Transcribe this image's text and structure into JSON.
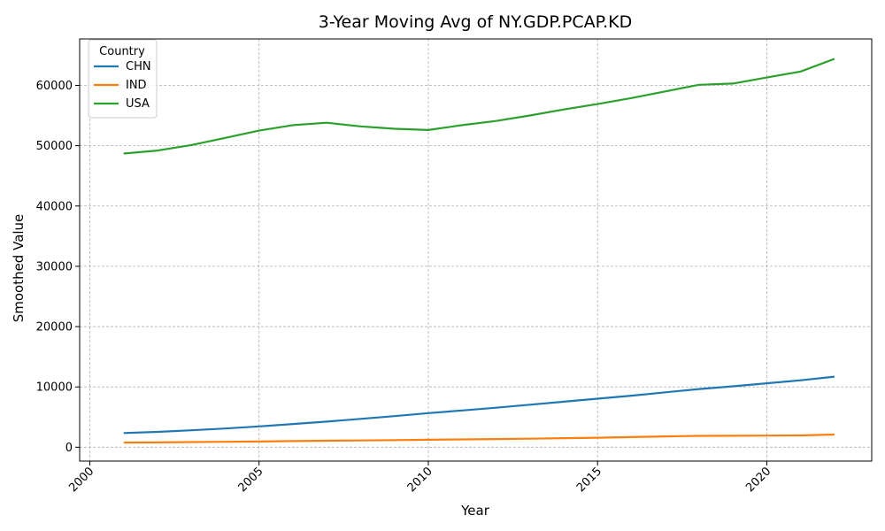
{
  "chart_data": {
    "type": "line",
    "title": "3-Year Moving Avg of NY.GDP.PCAP.KD",
    "xlabel": "Year",
    "ylabel": "Smoothed Value",
    "xlim": [
      1999.7,
      2023.1
    ],
    "ylim": [
      -2300,
      67700
    ],
    "xticks": [
      2000,
      2005,
      2010,
      2015,
      2020
    ],
    "yticks": [
      0,
      10000,
      20000,
      30000,
      40000,
      50000,
      60000
    ],
    "grid": true,
    "legend": {
      "title": "Country",
      "position": "top-left"
    },
    "x": [
      2001,
      2002,
      2003,
      2004,
      2005,
      2006,
      2007,
      2008,
      2009,
      2010,
      2011,
      2012,
      2013,
      2014,
      2015,
      2016,
      2017,
      2018,
      2019,
      2020,
      2021,
      2022
    ],
    "series": [
      {
        "name": "CHN",
        "color": "#1f77b4",
        "values": [
          2350,
          2550,
          2800,
          3100,
          3450,
          3850,
          4250,
          4700,
          5150,
          5650,
          6100,
          6550,
          7050,
          7550,
          8050,
          8550,
          9100,
          9650,
          10100,
          10600,
          11100,
          11700
        ]
      },
      {
        "name": "IND",
        "color": "#ff7f0e",
        "values": [
          760,
          800,
          850,
          900,
          950,
          1020,
          1080,
          1120,
          1180,
          1230,
          1290,
          1350,
          1420,
          1500,
          1580,
          1680,
          1800,
          1880,
          1900,
          1920,
          1960,
          2100
        ]
      },
      {
        "name": "USA",
        "color": "#2ca02c",
        "values": [
          48700,
          49200,
          50100,
          51300,
          52500,
          53400,
          53800,
          53200,
          52800,
          52600,
          53400,
          54100,
          55000,
          56000,
          56900,
          57900,
          59000,
          60100,
          60300,
          61300,
          62300,
          64400
        ]
      }
    ]
  }
}
